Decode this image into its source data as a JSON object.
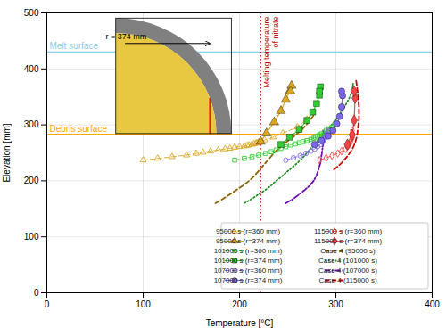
{
  "chart_data": {
    "type": "line",
    "xlabel": "Temperature [°C]",
    "ylabel": "Elevation [mm]",
    "xlim": [
      0,
      400
    ],
    "ylim": [
      0,
      500
    ],
    "xticks": [
      0,
      100,
      200,
      300,
      400
    ],
    "yticks": [
      0,
      100,
      200,
      300,
      400,
      500
    ],
    "grid": true,
    "legend": "lower right",
    "reference_lines": [
      {
        "axis": "y",
        "value": 430,
        "label": "Melt surface",
        "color": "#87CEEB",
        "line_style": "solid"
      },
      {
        "axis": "y",
        "value": 283,
        "label": "Debris surface",
        "color": "#FFA500",
        "line_style": "solid"
      },
      {
        "axis": "x",
        "value": 222,
        "label": "Melting temperature\nof nitrate",
        "color": "#CC0000",
        "line_style": "dotted"
      }
    ],
    "annotations": [
      {
        "text": "r = 374 mm"
      }
    ],
    "series": [
      {
        "name": "95000 s (r=360 mm)",
        "color": "#DAA520",
        "line_style": "dashed",
        "marker": "triangle-open",
        "x": [
          100,
          115,
          130,
          145,
          155,
          162,
          170,
          178,
          185,
          190,
          195,
          200,
          205,
          208,
          210,
          213,
          215,
          217,
          218,
          220,
          222,
          226,
          235,
          245,
          260,
          270
        ],
        "values": [
          237,
          240,
          243,
          246,
          249,
          251,
          253,
          255,
          257,
          258,
          260,
          261,
          262,
          263,
          264,
          265,
          266,
          267,
          268,
          269,
          270,
          273,
          278,
          285,
          296,
          310
        ]
      },
      {
        "name": "95000 s (r=374 mm)",
        "color": "#DAA520",
        "line_style": "solid",
        "marker": "triangle",
        "x": [
          222,
          228,
          236,
          243,
          248,
          252,
          254,
          253
        ],
        "values": [
          270,
          285,
          305,
          325,
          345,
          360,
          370,
          360
        ]
      },
      {
        "name": "101000 s (r=360 mm)",
        "color": "#32CD32",
        "line_style": "dashed",
        "marker": "square-open",
        "x": [
          195,
          205,
          213,
          220,
          227,
          233,
          238,
          243,
          248,
          253,
          258,
          262,
          266,
          270,
          274,
          277,
          279,
          281,
          283,
          285,
          288,
          290,
          293,
          296,
          299
        ],
        "values": [
          237,
          240,
          243,
          246,
          249,
          252,
          255,
          258,
          261,
          264,
          266,
          268,
          270,
          272,
          274,
          276,
          278,
          280,
          282,
          284,
          287,
          290,
          293,
          296,
          300
        ]
      },
      {
        "name": "101000 s (r=374 mm)",
        "color": "#32CD32",
        "line_style": "solid",
        "marker": "square",
        "x": [
          243,
          252,
          262,
          270,
          276,
          280,
          283,
          284,
          283
        ],
        "values": [
          265,
          278,
          292,
          308,
          323,
          338,
          353,
          368,
          360
        ]
      },
      {
        "name": "107000 s (r=360 mm)",
        "color": "#7B68EE",
        "line_style": "dashed",
        "marker": "circle-open",
        "x": [
          248,
          256,
          263,
          269,
          274,
          278,
          281,
          284,
          286,
          287,
          288,
          289,
          290,
          291,
          292,
          292
        ],
        "values": [
          237,
          241,
          245,
          249,
          253,
          257,
          261,
          265,
          269,
          272,
          275,
          278,
          281,
          284,
          287,
          290
        ]
      },
      {
        "name": "107000 s (r=374 mm)",
        "color": "#7B68EE",
        "line_style": "solid",
        "marker": "circle",
        "x": [
          278,
          285,
          292,
          297,
          301,
          304,
          306,
          307,
          306
        ],
        "values": [
          265,
          272,
          280,
          290,
          302,
          315,
          332,
          352,
          360
        ]
      },
      {
        "name": "115000 s (r=360 mm)",
        "color": "#FF4444",
        "line_style": "dashed",
        "marker": "diamond-open",
        "x": [
          283,
          290,
          296,
          302,
          306,
          310,
          312,
          314,
          315,
          316,
          317,
          317,
          317,
          317
        ],
        "values": [
          237,
          241,
          245,
          249,
          253,
          257,
          261,
          265,
          269,
          273,
          277,
          281,
          285,
          290
        ]
      },
      {
        "name": "115000 s (r=374 mm)",
        "color": "#FF4444",
        "line_style": "solid",
        "marker": "diamond",
        "x": [
          312,
          317,
          319,
          320,
          319
        ],
        "values": [
          265,
          282,
          308,
          348,
          360
        ]
      },
      {
        "name": "Case 4 (95000 s)",
        "color": "#8B6400",
        "line_style": "dashed",
        "x": [
          175,
          183,
          190,
          197,
          204,
          210,
          215,
          219,
          223,
          227,
          231,
          236,
          242,
          249,
          257,
          265,
          272,
          278
        ],
        "values": [
          160,
          168,
          176,
          184,
          192,
          200,
          208,
          216,
          224,
          232,
          240,
          250,
          260,
          270,
          280,
          292,
          305,
          320
        ]
      },
      {
        "name": "Case 4 (101000 s)",
        "color": "#228B22",
        "line_style": "dotted",
        "x": [
          205,
          213,
          220,
          227,
          233,
          238,
          244,
          249,
          255,
          260,
          265,
          270,
          275,
          280,
          286,
          292,
          298,
          305,
          310,
          314,
          317,
          318
        ],
        "values": [
          160,
          168,
          176,
          184,
          192,
          200,
          208,
          216,
          224,
          232,
          240,
          250,
          260,
          270,
          280,
          292,
          305,
          320,
          335,
          348,
          360,
          375
        ]
      },
      {
        "name": "Case 4 (107000 s)",
        "color": "#6A0DAD",
        "line_style": "dashdot",
        "x": [
          248,
          256,
          262,
          268,
          273,
          277,
          280,
          282,
          284,
          285,
          286,
          287,
          287,
          287
        ],
        "values": [
          160,
          168,
          176,
          184,
          192,
          200,
          210,
          220,
          232,
          244,
          256,
          268,
          280,
          292
        ]
      },
      {
        "name": "Case 4 (115000 s)",
        "color": "#CC0000",
        "line_style": "dashed",
        "x": [
          298,
          306,
          312,
          317,
          320,
          322,
          323,
          324,
          324,
          323,
          321
        ],
        "values": [
          220,
          232,
          244,
          256,
          268,
          280,
          295,
          310,
          330,
          355,
          380
        ]
      }
    ]
  }
}
